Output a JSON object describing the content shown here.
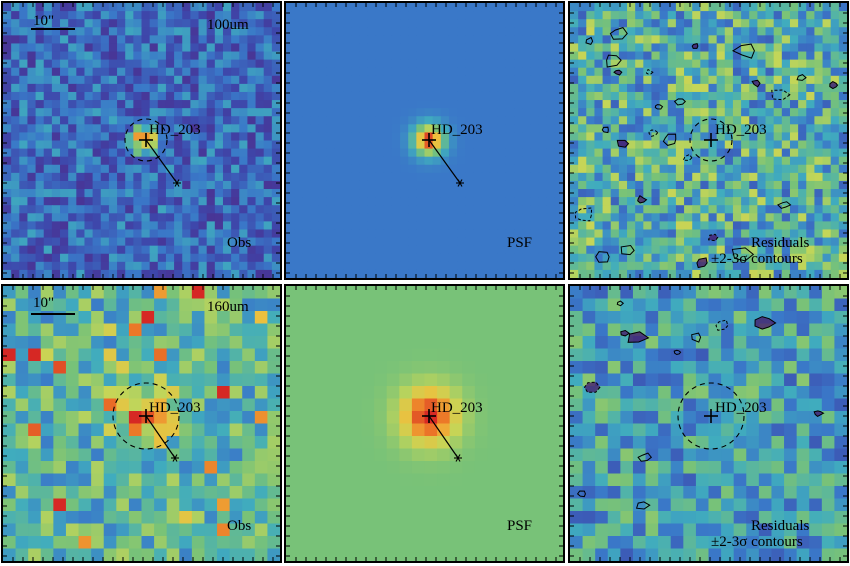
{
  "target": {
    "name": "HD_203"
  },
  "scalebar": {
    "label": "10\""
  },
  "rows": [
    {
      "band": "100um",
      "obs": {
        "label": "Obs"
      },
      "psf": {
        "label": "PSF"
      },
      "residual": {
        "label_line1": "Residuals",
        "label_line2": "±2-3σ contours"
      }
    },
    {
      "band": "160um",
      "obs": {
        "label": "Obs"
      },
      "psf": {
        "label": "PSF"
      },
      "residual": {
        "label_line1": "Residuals",
        "label_line2": "±2-3σ contours"
      }
    }
  ],
  "colors": {
    "psf_background_100": "#3f72c2",
    "psf_background_160": "#7ec27a",
    "peak": "#e8452a",
    "contour": "#000000"
  }
}
